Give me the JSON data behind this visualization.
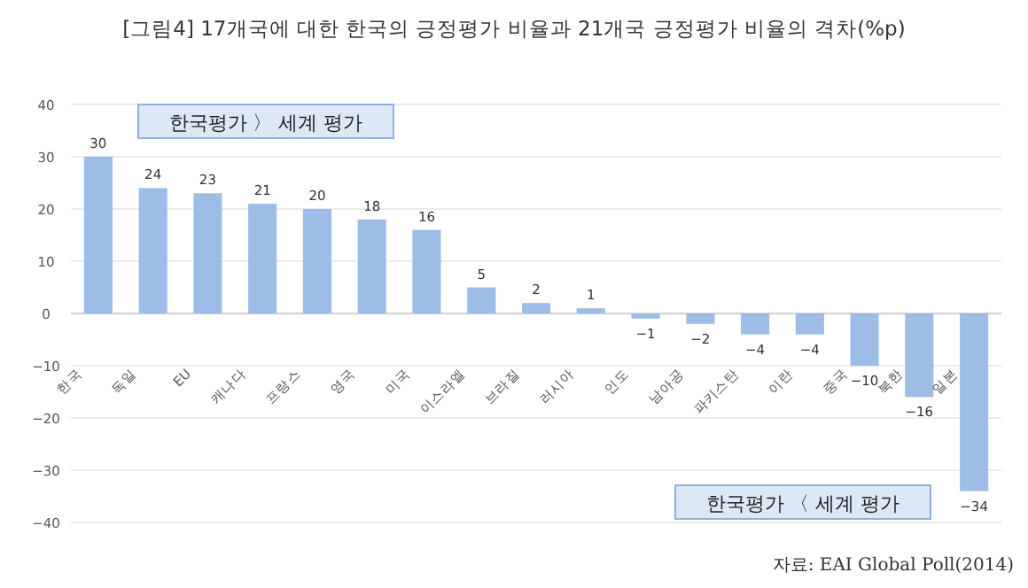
{
  "chart_data": {
    "type": "bar",
    "title": "[그림4] 17개국에 대한 한국의 긍정평가 비율과 21개국 긍정평가 비율의 격차(%p)",
    "categories": [
      "한국",
      "독일",
      "EU",
      "캐나다",
      "프랑스",
      "영국",
      "미국",
      "이스라엘",
      "브라질",
      "러시아",
      "인도",
      "남아공",
      "파키스탄",
      "이란",
      "중국",
      "북한",
      "일본"
    ],
    "values": [
      30,
      24,
      23,
      21,
      20,
      18,
      16,
      5,
      2,
      1,
      -1,
      -2,
      -4,
      -4,
      -10,
      -16,
      -34
    ],
    "color": "#9dbde6",
    "ylim": [
      -40,
      40
    ],
    "yticks": [
      -40,
      -30,
      -20,
      -10,
      0,
      10,
      20,
      30,
      40
    ],
    "grid": "y",
    "data_labels": true,
    "annotations": [
      "한국평가 〉 세계 평가",
      "한국평가 〈 세계 평가",
      "자료: EAI Global Poll(2014)"
    ]
  }
}
